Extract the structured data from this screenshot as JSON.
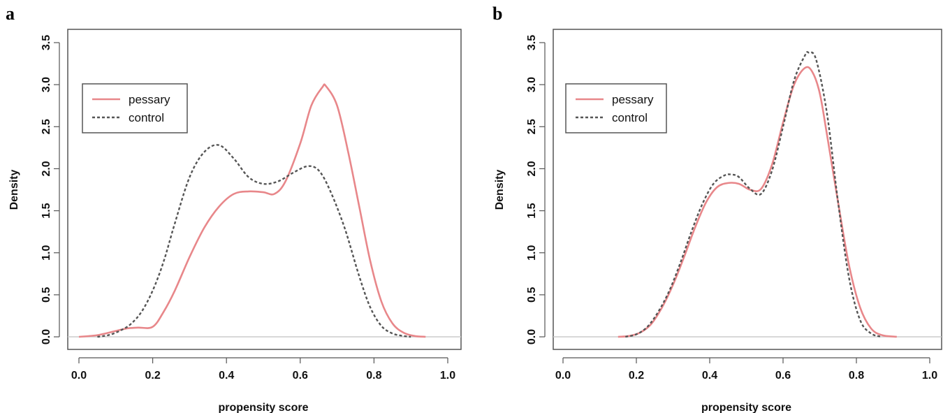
{
  "colors": {
    "pessary": "#e8878a",
    "control": "#555555",
    "axis": "#555555",
    "baseline": "#cccccc"
  },
  "chart_data": [
    {
      "panel": "a",
      "type": "line",
      "xlabel": "propensity score",
      "ylabel": "Density",
      "xlim": [
        0.0,
        1.0
      ],
      "ylim": [
        0.0,
        3.5
      ],
      "xticks": [
        "0.0",
        "0.2",
        "0.4",
        "0.6",
        "0.8",
        "1.0"
      ],
      "yticks": [
        "0.0",
        "0.5",
        "1.0",
        "1.5",
        "2.0",
        "2.5",
        "3.0",
        "3.5"
      ],
      "legend": {
        "position": "top-left"
      },
      "series": [
        {
          "name": "pessary",
          "style": "solid",
          "x": [
            0.0,
            0.05,
            0.1,
            0.13,
            0.16,
            0.2,
            0.23,
            0.26,
            0.3,
            0.34,
            0.38,
            0.42,
            0.46,
            0.5,
            0.53,
            0.56,
            0.6,
            0.63,
            0.66,
            0.67,
            0.7,
            0.73,
            0.76,
            0.79,
            0.82,
            0.85,
            0.88,
            0.91,
            0.94
          ],
          "y": [
            0.0,
            0.02,
            0.07,
            0.1,
            0.11,
            0.12,
            0.3,
            0.55,
            0.95,
            1.3,
            1.55,
            1.7,
            1.73,
            1.72,
            1.7,
            1.85,
            2.3,
            2.75,
            2.97,
            2.98,
            2.75,
            2.2,
            1.55,
            0.9,
            0.42,
            0.16,
            0.05,
            0.01,
            0.0
          ]
        },
        {
          "name": "control",
          "style": "dashed",
          "x": [
            0.05,
            0.08,
            0.11,
            0.14,
            0.17,
            0.2,
            0.23,
            0.26,
            0.3,
            0.34,
            0.38,
            0.42,
            0.46,
            0.5,
            0.54,
            0.58,
            0.62,
            0.65,
            0.68,
            0.72,
            0.76,
            0.79,
            0.82,
            0.85,
            0.88,
            0.9
          ],
          "y": [
            0.0,
            0.02,
            0.07,
            0.15,
            0.3,
            0.55,
            0.9,
            1.35,
            1.9,
            2.2,
            2.28,
            2.12,
            1.9,
            1.82,
            1.85,
            1.95,
            2.03,
            1.98,
            1.75,
            1.3,
            0.72,
            0.35,
            0.13,
            0.04,
            0.01,
            0.0
          ]
        }
      ]
    },
    {
      "panel": "b",
      "type": "line",
      "xlabel": "propensity score",
      "ylabel": "Density",
      "xlim": [
        0.0,
        1.0
      ],
      "ylim": [
        0.0,
        3.5
      ],
      "xticks": [
        "0.0",
        "0.2",
        "0.4",
        "0.6",
        "0.8",
        "1.0"
      ],
      "yticks": [
        "0.0",
        "0.5",
        "1.0",
        "1.5",
        "2.0",
        "2.5",
        "3.0",
        "3.5"
      ],
      "legend": {
        "position": "top-left"
      },
      "series": [
        {
          "name": "pessary",
          "style": "solid",
          "x": [
            0.15,
            0.18,
            0.21,
            0.24,
            0.27,
            0.3,
            0.33,
            0.36,
            0.39,
            0.42,
            0.45,
            0.48,
            0.51,
            0.54,
            0.57,
            0.6,
            0.63,
            0.66,
            0.68,
            0.7,
            0.72,
            0.75,
            0.78,
            0.81,
            0.84,
            0.87,
            0.91
          ],
          "y": [
            0.0,
            0.01,
            0.05,
            0.15,
            0.35,
            0.62,
            0.95,
            1.3,
            1.6,
            1.78,
            1.83,
            1.82,
            1.75,
            1.76,
            2.05,
            2.55,
            3.0,
            3.2,
            3.15,
            2.9,
            2.4,
            1.6,
            0.85,
            0.35,
            0.1,
            0.02,
            0.0
          ]
        },
        {
          "name": "control",
          "style": "dashed",
          "x": [
            0.17,
            0.2,
            0.23,
            0.26,
            0.29,
            0.32,
            0.35,
            0.38,
            0.41,
            0.44,
            0.46,
            0.48,
            0.51,
            0.54,
            0.57,
            0.6,
            0.63,
            0.66,
            0.67,
            0.69,
            0.72,
            0.75,
            0.78,
            0.81,
            0.84,
            0.87
          ],
          "y": [
            0.0,
            0.03,
            0.12,
            0.3,
            0.55,
            0.88,
            1.25,
            1.58,
            1.82,
            1.92,
            1.93,
            1.9,
            1.76,
            1.7,
            1.98,
            2.5,
            3.05,
            3.35,
            3.38,
            3.3,
            2.65,
            1.6,
            0.7,
            0.2,
            0.04,
            0.0
          ]
        }
      ]
    }
  ]
}
